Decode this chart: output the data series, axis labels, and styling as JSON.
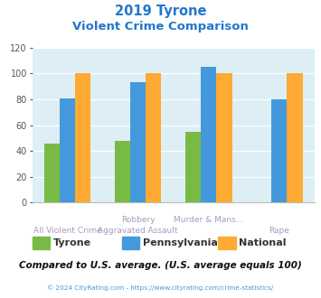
{
  "title_line1": "2019 Tyrone",
  "title_line2": "Violent Crime Comparison",
  "series": {
    "Tyrone": [
      46,
      48,
      55,
      0
    ],
    "Pennsylvania": [
      81,
      93,
      105,
      80
    ],
    "National": [
      100,
      100,
      100,
      100
    ]
  },
  "colors": {
    "Tyrone": "#77bb44",
    "Pennsylvania": "#4499dd",
    "National": "#ffaa33"
  },
  "ylim": [
    0,
    120
  ],
  "yticks": [
    0,
    20,
    40,
    60,
    80,
    100,
    120
  ],
  "background_color": "#ddeef5",
  "title_color": "#2277cc",
  "xtick_color": "#aa99bb",
  "ytick_color": "#555555",
  "footer_note": "Compared to U.S. average. (U.S. average equals 100)",
  "footer_note_color": "#111111",
  "copyright_text": "© 2024 CityRating.com - https://www.cityrating.com/crime-statistics/",
  "copyright_color": "#4499dd",
  "bar_width": 0.22,
  "x_labels_row1": [
    "",
    "Robbery",
    "Murder & Mans...",
    ""
  ],
  "x_labels_row2": [
    "All Violent Crime",
    "Aggravated Assault",
    "",
    "Rape"
  ],
  "legend_labels": [
    "Tyrone",
    "Pennsylvania",
    "National"
  ]
}
